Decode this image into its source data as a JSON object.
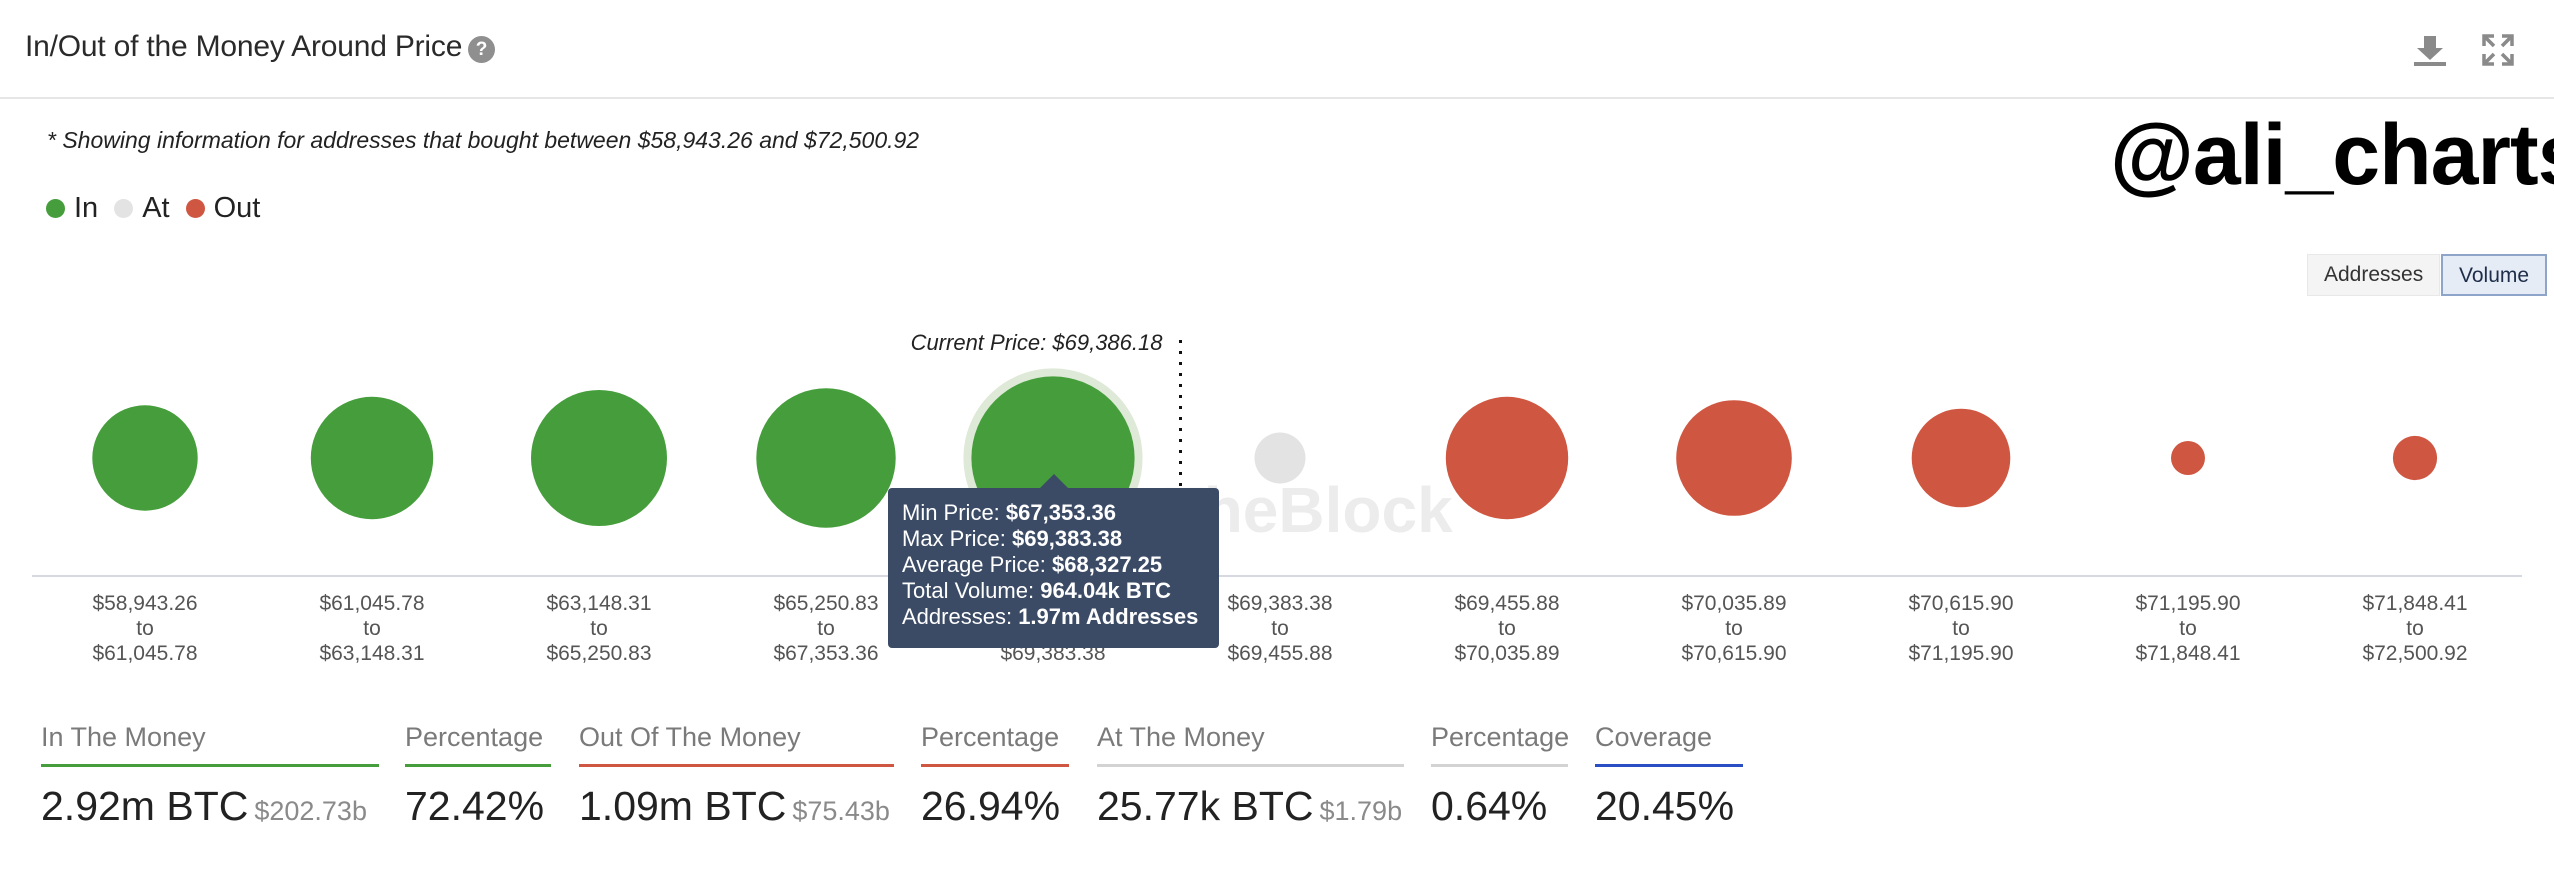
{
  "header": {
    "title": "In/Out of the Money Around Price",
    "help_icon": "question-circle-icon",
    "download_icon": "download-icon",
    "expand_icon": "expand-icon"
  },
  "note": "* Showing information for addresses that bought between $58,943.26 and $72,500.92",
  "watermark_handle": "@ali_charts",
  "legend": [
    {
      "label": "In",
      "color": "#459e3b"
    },
    {
      "label": "At",
      "color": "#e3e3e3"
    },
    {
      "label": "Out",
      "color": "#cf5741"
    }
  ],
  "toggles": {
    "addresses": "Addresses",
    "volume": "Volume",
    "active": "Volume"
  },
  "chart_data": {
    "type": "bubble",
    "title": "In/Out of the Money Around Price",
    "metric": "Volume",
    "current_price_label": "Current Price: $69,386.18",
    "current_price": 69386.18,
    "background_watermark": "IntoTheBlock",
    "buckets": [
      {
        "from": "$58,943.26",
        "to": "$61,045.78",
        "status": "In"
      },
      {
        "from": "$61,045.78",
        "to": "$63,148.31",
        "status": "In"
      },
      {
        "from": "$63,148.31",
        "to": "$65,250.83",
        "status": "In"
      },
      {
        "from": "$65,250.83",
        "to": "$67,353.36",
        "status": "In"
      },
      {
        "from": "$67,353.36",
        "to": "$69,383.38",
        "status": "In"
      },
      {
        "from": "$69,383.38",
        "to": "$69,455.88",
        "status": "At"
      },
      {
        "from": "$69,455.88",
        "to": "$70,035.89",
        "status": "Out"
      },
      {
        "from": "$70,035.89",
        "to": "$70,615.90",
        "status": "Out"
      },
      {
        "from": "$70,615.90",
        "to": "$71,195.90",
        "status": "Out"
      },
      {
        "from": "$71,195.90",
        "to": "$71,848.41",
        "status": "Out"
      },
      {
        "from": "$71,848.41",
        "to": "$72,500.92",
        "status": "Out"
      }
    ],
    "relative_size": [
      0.62,
      0.72,
      0.8,
      0.82,
      0.96,
      0.3,
      0.72,
      0.68,
      0.58,
      0.2,
      0.26
    ],
    "tick_connector": "to",
    "highlighted_bucket": 4,
    "tooltip": {
      "min_price_label": "Min Price:",
      "min_price": "$67,353.36",
      "max_price_label": "Max Price:",
      "max_price": "$69,383.38",
      "avg_price_label": "Average Price:",
      "avg_price": "$68,327.25",
      "volume_label": "Total Volume:",
      "volume": "964.04k BTC",
      "addresses_label": "Addresses:",
      "addresses": "1.97m Addresses"
    }
  },
  "stats": {
    "in_money": {
      "label": "In The Money",
      "value": "2.92m BTC",
      "sub": "$202.73b",
      "color": "#459e3b"
    },
    "in_pct": {
      "label": "Percentage",
      "value": "72.42%",
      "color": "#459e3b"
    },
    "out_money": {
      "label": "Out Of The Money",
      "value": "1.09m BTC",
      "sub": "$75.43b",
      "color": "#cf5741"
    },
    "out_pct": {
      "label": "Percentage",
      "value": "26.94%",
      "color": "#cf5741"
    },
    "at_money": {
      "label": "At The Money",
      "value": "25.77k BTC",
      "sub": "$1.79b",
      "color": "#d3d3d3"
    },
    "at_pct": {
      "label": "Percentage",
      "value": "0.64%",
      "color": "#d3d3d3"
    },
    "coverage": {
      "label": "Coverage",
      "value": "20.45%",
      "color": "#2a4fc4"
    }
  }
}
